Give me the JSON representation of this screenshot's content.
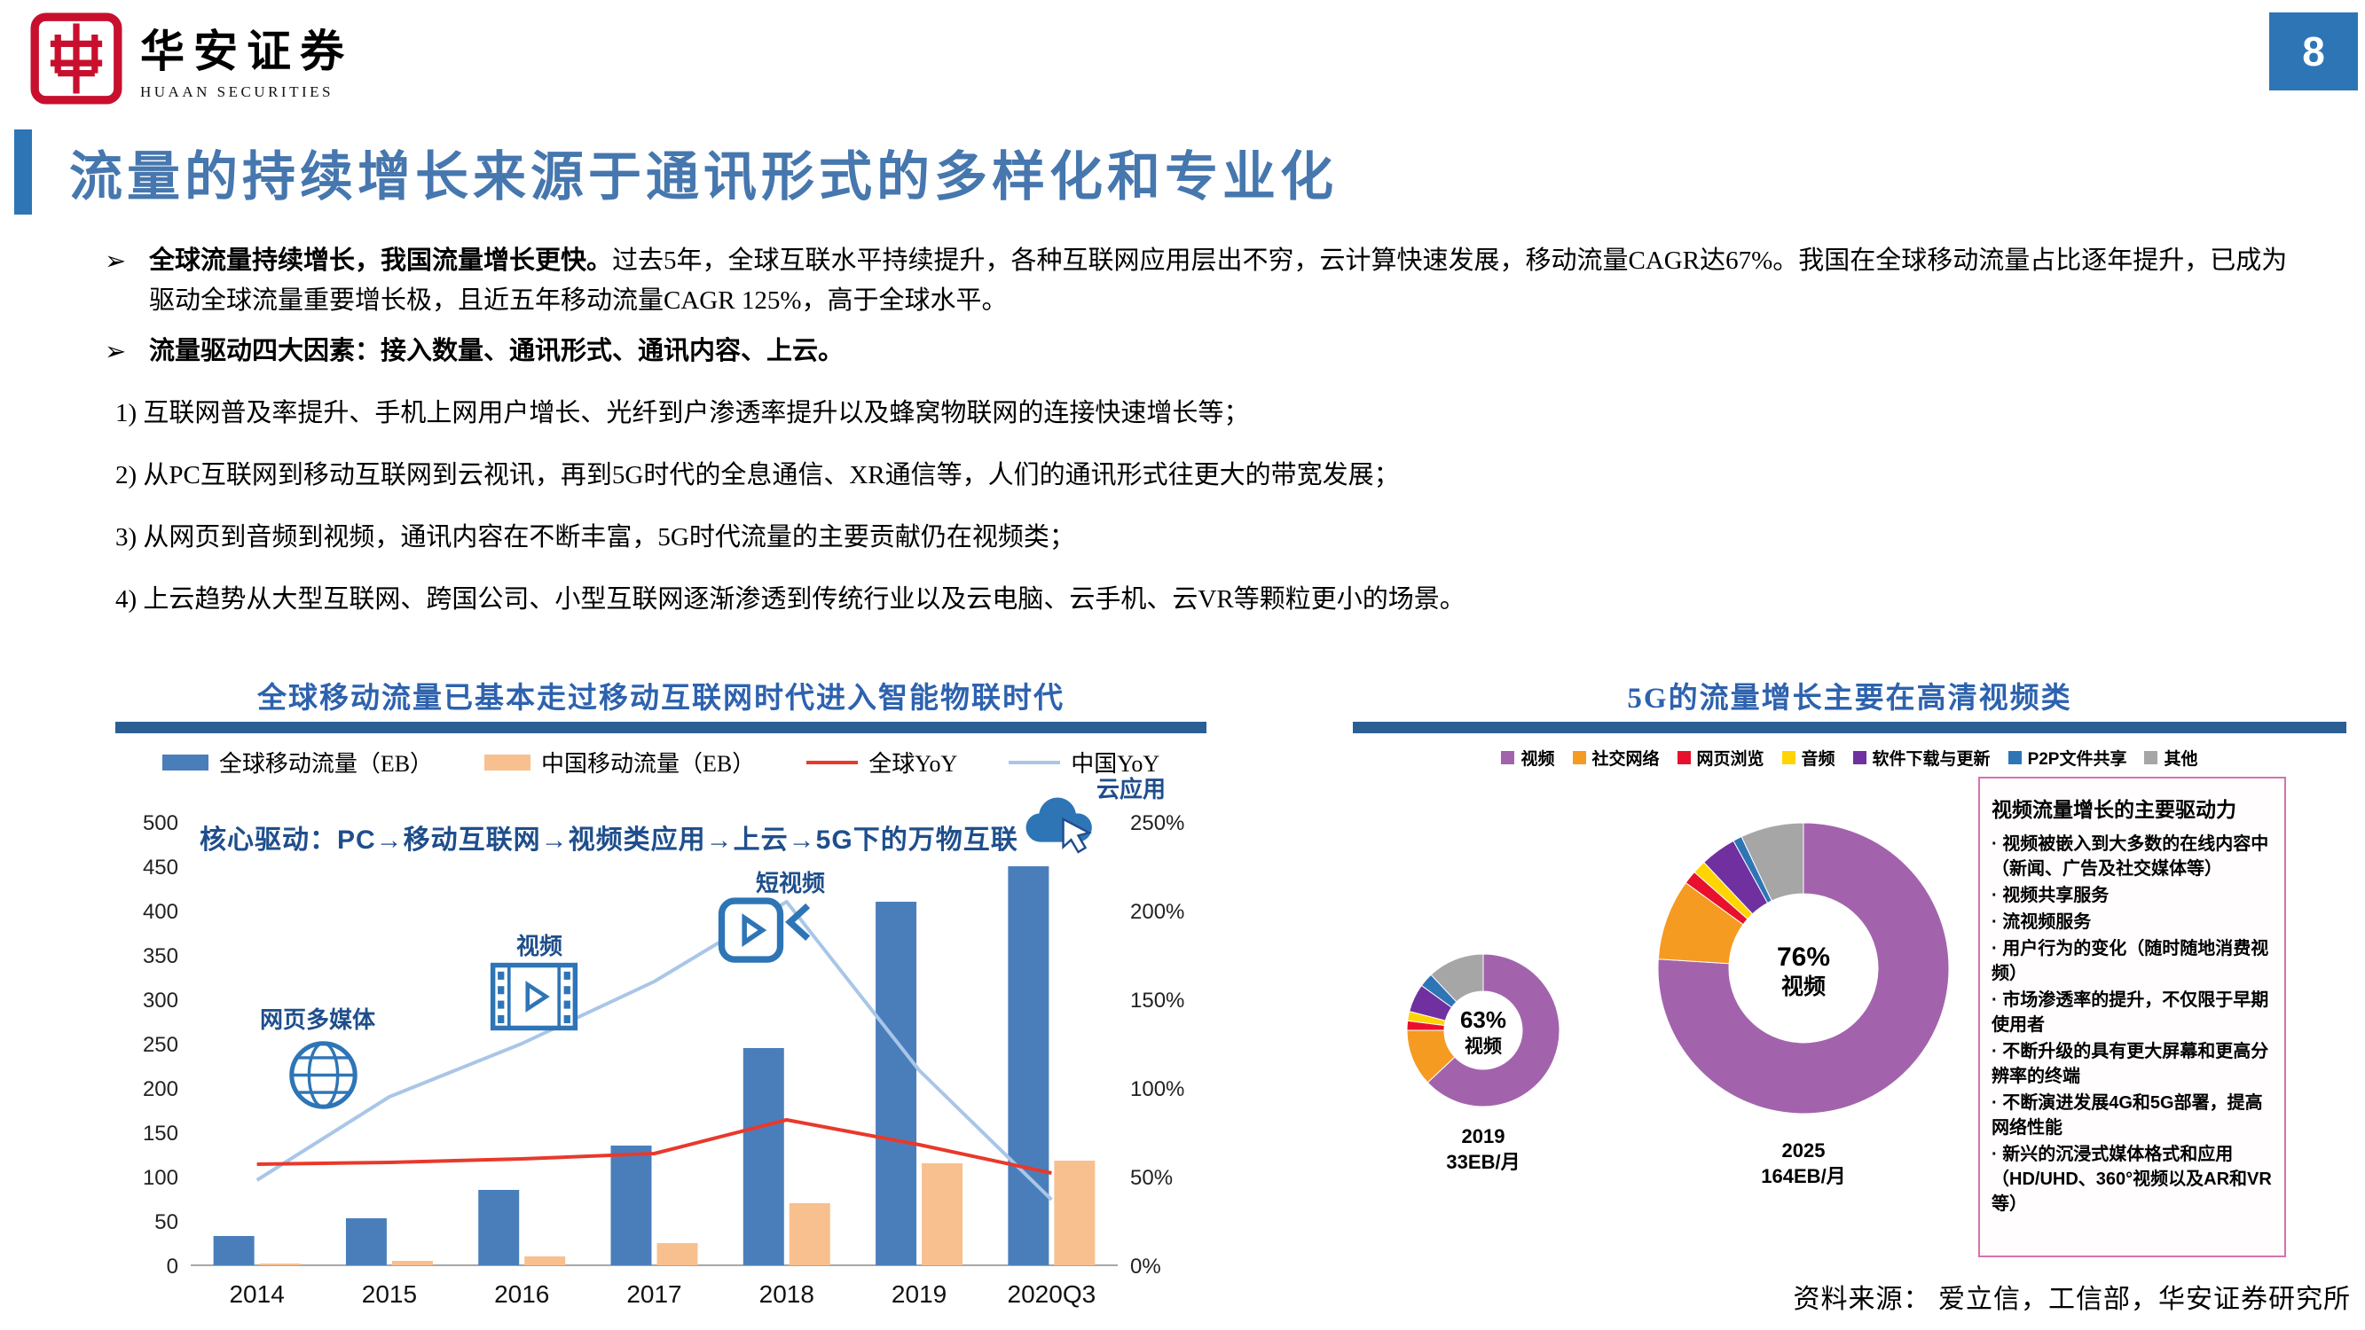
{
  "page": {
    "logo_title": "华安证券",
    "logo_subtitle": "HUAAN SECURITIES",
    "page_number": "8",
    "title": "流量的持续增长来源于通讯形式的多样化和专业化",
    "footer_source": "资料来源：  爱立信，工信部，华安证券研究所"
  },
  "theme": {
    "accent_blue": "#2E75B6",
    "title_blue": "#4677AE",
    "chart_title_blue": "#2D62AE",
    "underline_blue": "#2B5F94",
    "annotation_blue": "#1F4E8C",
    "seal_red": "#C8102E",
    "driver_box_border": "#D671AE"
  },
  "bullets": [
    {
      "bold": "全球流量持续增长，我国流量增长更快。",
      "text": "过去5年，全球互联水平持续提升，各种互联网应用层出不穷，云计算快速发展，移动流量CAGR达67%。我国在全球移动流量占比逐年提升，已成为驱动全球流量重要增长极，且近五年移动流量CAGR 125%，高于全球水平。"
    },
    {
      "bold": "流量驱动四大因素：接入数量、通讯形式、通讯内容、上云。",
      "text": ""
    }
  ],
  "numbered_points": [
    "1) 互联网普及率提升、手机上网用户增长、光纤到户渗透率提升以及蜂窝物联网的连接快速增长等；",
    "2) 从PC互联网到移动互联网到云视讯，再到5G时代的全息通信、XR通信等，人们的通讯形式往更大的带宽发展；",
    "3) 从网页到音频到视频，通讯内容在不断丰富，5G时代流量的主要贡献仍在视频类；",
    "4) 上云趋势从大型互联网、跨国公司、小型互联网逐渐渗透到传统行业以及云电脑、云手机、云VR等颗粒更小的场景。"
  ],
  "chart_data": [
    {
      "type": "bar+line",
      "title": "全球移动流量已基本走过移动互联网时代进入智能物联时代",
      "categories": [
        "2014",
        "2015",
        "2016",
        "2017",
        "2018",
        "2019",
        "2020Q3"
      ],
      "series": [
        {
          "name": "全球移动流量（EB）",
          "type": "bar",
          "axis": "left",
          "color": "#4A7EBB",
          "values": [
            33,
            53,
            85,
            135,
            245,
            410,
            450
          ]
        },
        {
          "name": "中国移动流量（EB）",
          "type": "bar",
          "axis": "left",
          "color": "#F8C08E",
          "values": [
            2,
            5,
            10,
            25,
            70,
            115,
            118
          ]
        },
        {
          "name": "全球YoY",
          "type": "line",
          "axis": "right",
          "color": "#E8392B",
          "values": [
            57,
            58,
            60,
            63,
            82,
            68,
            52
          ]
        },
        {
          "name": "中国YoY",
          "type": "line",
          "axis": "right",
          "color": "#A9C6E8",
          "values": [
            48,
            95,
            125,
            160,
            205,
            110,
            37
          ]
        }
      ],
      "left_axis": {
        "min": 0,
        "max": 500,
        "step": 50,
        "suffix": ""
      },
      "right_axis": {
        "min": 0,
        "max": 250,
        "step": 50,
        "suffix": "%"
      },
      "annotation": "核心驱动：PC→移动互联网→视频类应用→上云→5G下的万物互联",
      "chart_labels": [
        "网页多媒体",
        "视频",
        "短视频",
        "云应用"
      ],
      "legend_position": "top",
      "grid": false
    },
    {
      "type": "donut",
      "title": "5G的流量增长主要在高清视频类",
      "categories": [
        "视频",
        "社交网络",
        "网页浏览",
        "音频",
        "软件下载与更新",
        "P2P文件共享",
        "其他"
      ],
      "colors": [
        "#A263AC",
        "#F59B22",
        "#E8112D",
        "#FFD400",
        "#7030A0",
        "#2E75B6",
        "#A6A6A6"
      ],
      "donuts": [
        {
          "year": "2019",
          "volume": "33EB/月",
          "center_pct": "63%",
          "center_label": "视频",
          "values": [
            63,
            12,
            2,
            2,
            6,
            3,
            12
          ]
        },
        {
          "year": "2025",
          "volume": "164EB/月",
          "center_pct": "76%",
          "center_label": "视频",
          "values": [
            76,
            9,
            1.5,
            1.5,
            4,
            1,
            7
          ]
        }
      ],
      "driver_box": {
        "title": "视频流量增长的主要驱动力",
        "items": [
          "视频被嵌入到大多数的在线内容中（新闻、广告及社交媒体等）",
          "视频共享服务",
          "流视频服务",
          "用户行为的变化（随时随地消费视频）",
          "市场渗透率的提升，不仅限于早期使用者",
          "不断升级的具有更大屏幕和更高分辨率的终端",
          "不断演进发展4G和5G部署，提高网络性能",
          "新兴的沉浸式媒体格式和应用（HD/UHD、360°视频以及AR和VR等）"
        ]
      },
      "legend_position": "top",
      "grid": false
    }
  ]
}
